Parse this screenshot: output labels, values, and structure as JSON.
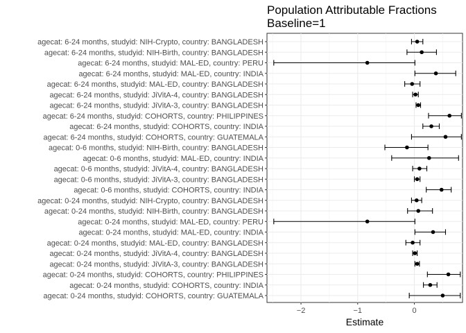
{
  "chart_data": {
    "type": "forest",
    "title": "Population Attributable Fractions",
    "subtitle": "Baseline=1",
    "xlabel": "Estimate",
    "ylabel": "",
    "xlim": [
      -2.6,
      0.85
    ],
    "xticks": [
      -2,
      -1,
      0
    ],
    "grid": true,
    "legend": "none",
    "point_color": "#000000",
    "categories": [
      "agecat: 6-24 months, studyid: NIH-Crypto, country: BANGLADESH",
      "agecat: 6-24 months, studyid: NIH-Birth, country: BANGLADESH",
      "agecat: 6-24 months, studyid: MAL-ED, country: PERU",
      "agecat: 6-24 months, studyid: MAL-ED, country: INDIA",
      "agecat: 6-24 months, studyid: MAL-ED, country: BANGLADESH",
      "agecat: 6-24 months, studyid: JiVitA-4, country: BANGLADESH",
      "agecat: 6-24 months, studyid: JiVitA-3, country: BANGLADESH",
      "agecat: 6-24 months, studyid: COHORTS, country: PHILIPPINES",
      "agecat: 6-24 months, studyid: COHORTS, country: INDIA",
      "agecat: 6-24 months, studyid: COHORTS, country: GUATEMALA",
      "agecat: 0-6 months, studyid: NIH-Birth, country: BANGLADESH",
      "agecat: 0-6 months, studyid: MAL-ED, country: INDIA",
      "agecat: 0-6 months, studyid: JiVitA-4, country: BANGLADESH",
      "agecat: 0-6 months, studyid: JiVitA-3, country: BANGLADESH",
      "agecat: 0-6 months, studyid: COHORTS, country: INDIA",
      "agecat: 0-24 months, studyid: NIH-Crypto, country: BANGLADESH",
      "agecat: 0-24 months, studyid: NIH-Birth, country: BANGLADESH",
      "agecat: 0-24 months, studyid: MAL-ED, country: PERU",
      "agecat: 0-24 months, studyid: MAL-ED, country: INDIA",
      "agecat: 0-24 months, studyid: MAL-ED, country: BANGLADESH",
      "agecat: 0-24 months, studyid: JiVitA-4, country: BANGLADESH",
      "agecat: 0-24 months, studyid: JiVitA-3, country: BANGLADESH",
      "agecat: 0-24 months, studyid: COHORTS, country: PHILIPPINES",
      "agecat: 0-24 months, studyid: COHORTS, country: INDIA",
      "agecat: 0-24 months, studyid: COHORTS, country: GUATEMALA"
    ],
    "estimates": [
      0.05,
      0.13,
      -0.83,
      0.38,
      -0.04,
      0.02,
      0.07,
      0.62,
      0.3,
      0.55,
      -0.13,
      0.26,
      0.09,
      0.05,
      0.48,
      0.04,
      0.07,
      -0.83,
      0.33,
      -0.03,
      0.01,
      0.05,
      0.6,
      0.28,
      0.5
    ],
    "lower": [
      -0.05,
      -0.13,
      -2.48,
      0.01,
      -0.17,
      -0.03,
      0.03,
      0.25,
      0.15,
      -0.05,
      -0.52,
      -0.4,
      -0.03,
      0.0,
      0.21,
      -0.05,
      -0.12,
      -2.48,
      0.01,
      -0.15,
      -0.03,
      0.01,
      0.23,
      0.16,
      -0.09
    ],
    "upper": [
      0.15,
      0.39,
      0.01,
      0.73,
      0.1,
      0.07,
      0.11,
      0.83,
      0.44,
      0.83,
      0.24,
      0.78,
      0.22,
      0.1,
      0.65,
      0.13,
      0.32,
      0.01,
      0.55,
      0.1,
      0.05,
      0.09,
      0.81,
      0.4,
      0.81
    ]
  }
}
